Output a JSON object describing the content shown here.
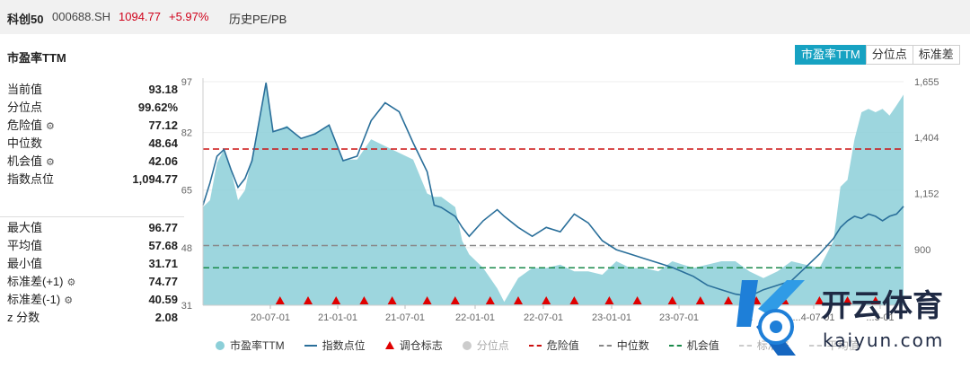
{
  "header": {
    "index_name": "科创50",
    "index_code": "000688.SH",
    "price": "1094.77",
    "change": "+5.97%",
    "history_label": "历史PE/PB"
  },
  "section_title": "市盈率TTM",
  "tabs": [
    {
      "label": "市盈率TTM",
      "active": true
    },
    {
      "label": "分位点",
      "active": false
    },
    {
      "label": "标准差",
      "active": false
    }
  ],
  "stats_top": [
    {
      "label": "当前值",
      "value": "93.18",
      "gear": false
    },
    {
      "label": "分位点",
      "value": "99.62%",
      "gear": false
    },
    {
      "label": "危险值",
      "value": "77.12",
      "gear": true
    },
    {
      "label": "中位数",
      "value": "48.64",
      "gear": false
    },
    {
      "label": "机会值",
      "value": "42.06",
      "gear": true
    },
    {
      "label": "指数点位",
      "value": "1,094.77",
      "gear": false
    }
  ],
  "stats_bottom": [
    {
      "label": "最大值",
      "value": "96.77",
      "gear": false
    },
    {
      "label": "平均值",
      "value": "57.68",
      "gear": false
    },
    {
      "label": "最小值",
      "value": "31.71",
      "gear": false
    },
    {
      "label": "标准差(+1)",
      "value": "74.77",
      "gear": true
    },
    {
      "label": "标准差(-1)",
      "value": "40.59",
      "gear": true
    },
    {
      "label": "z 分数",
      "value": "2.08",
      "gear": false
    }
  ],
  "watermark": {
    "brand": "开云体育",
    "domain": "kaiyun.com"
  },
  "colors": {
    "area": "#8ccfd8",
    "index_line": "#2a6f9a",
    "danger": "#cc1111",
    "median": "#888888",
    "opportunity": "#1a8a4a",
    "active_tab": "#17a2c2",
    "price": "#d0021b"
  },
  "chart_data": {
    "type": "area",
    "x_tick_labels": [
      "20-07-01",
      "21-01-01",
      "21-07-01",
      "22-01-01",
      "22-07-01",
      "23-01-01",
      "23-07-01",
      "24-01-01",
      "24-07-01",
      "25-01-01"
    ],
    "x_tick_visible": [
      "20-07-01",
      "21-01-01",
      "21-07-01",
      "22-01-01",
      "22-07-01",
      "23-01-01",
      "23-07-01",
      "...",
      "...4-07-01",
      "...5-01"
    ],
    "left_axis": {
      "ticks": [
        31,
        48,
        65,
        82,
        97
      ],
      "ylim": [
        31,
        97
      ]
    },
    "right_axis": {
      "ticks": [
        "900",
        "1,152",
        "1,404",
        "1,655"
      ],
      "tick_values": [
        900,
        1152,
        1404,
        1655
      ],
      "ylim": [
        650,
        1655
      ]
    },
    "reference_lines": {
      "danger": 77.12,
      "median": 48.64,
      "opportunity": 42.06
    },
    "x": [
      0,
      0.01,
      0.02,
      0.03,
      0.04,
      0.05,
      0.06,
      0.07,
      0.09,
      0.1,
      0.12,
      0.14,
      0.16,
      0.18,
      0.2,
      0.22,
      0.24,
      0.26,
      0.28,
      0.3,
      0.32,
      0.33,
      0.34,
      0.36,
      0.37,
      0.38,
      0.4,
      0.42,
      0.43,
      0.45,
      0.47,
      0.49,
      0.51,
      0.53,
      0.55,
      0.57,
      0.59,
      0.61,
      0.63,
      0.65,
      0.67,
      0.7,
      0.72,
      0.74,
      0.76,
      0.78,
      0.8,
      0.82,
      0.84,
      0.86,
      0.88,
      0.9,
      0.91,
      0.92,
      0.93,
      0.94,
      0.95,
      0.96,
      0.97,
      0.98,
      0.99,
      1.0
    ],
    "series": [
      {
        "name": "市盈率TTM",
        "axis": "left",
        "values": [
          60,
          62,
          73,
          77,
          71,
          62,
          65,
          75,
          97,
          82,
          84,
          80,
          82,
          84,
          74,
          74,
          80,
          78,
          76,
          74,
          64,
          63,
          63,
          60,
          50,
          46,
          42,
          36,
          32,
          39,
          42,
          42,
          43,
          41,
          41,
          40,
          44,
          42,
          42,
          41,
          44,
          42,
          43,
          44,
          44,
          41,
          39,
          41,
          44,
          43,
          42,
          50,
          66,
          68,
          80,
          88,
          89,
          88,
          89,
          87,
          90,
          93.18
        ]
      },
      {
        "name": "指数点位",
        "axis": "right",
        "values": [
          1100,
          1200,
          1320,
          1350,
          1260,
          1180,
          1220,
          1300,
          1650,
          1430,
          1450,
          1400,
          1420,
          1460,
          1300,
          1320,
          1480,
          1560,
          1520,
          1380,
          1250,
          1100,
          1090,
          1050,
          1000,
          960,
          1030,
          1080,
          1050,
          1000,
          960,
          1000,
          980,
          1060,
          1020,
          940,
          900,
          880,
          860,
          840,
          820,
          780,
          740,
          720,
          700,
          690,
          720,
          740,
          760,
          820,
          880,
          950,
          1000,
          1030,
          1050,
          1040,
          1060,
          1050,
          1030,
          1050,
          1060,
          1094.77
        ]
      }
    ],
    "adjustment_markers": [
      0.11,
      0.15,
      0.19,
      0.23,
      0.27,
      0.32,
      0.36,
      0.41,
      0.45,
      0.49,
      0.53,
      0.58,
      0.62,
      0.67,
      0.71,
      0.75,
      0.79,
      0.83,
      0.88,
      0.92,
      0.96
    ],
    "legend": [
      {
        "label": "市盈率TTM",
        "symbol": "dot",
        "color": "#8ccfd8",
        "muted": false
      },
      {
        "label": "指数点位",
        "symbol": "line",
        "color": "#2a6f9a",
        "muted": false
      },
      {
        "label": "调仓标志",
        "symbol": "triangle",
        "color": "#e00000",
        "muted": false
      },
      {
        "label": "分位点",
        "symbol": "dot",
        "color": "#cccccc",
        "muted": true
      },
      {
        "label": "危险值",
        "symbol": "dash",
        "color": "#cc1111",
        "muted": false
      },
      {
        "label": "中位数",
        "symbol": "dash",
        "color": "#888888",
        "muted": false
      },
      {
        "label": "机会值",
        "symbol": "dash",
        "color": "#1a8a4a",
        "muted": false
      },
      {
        "label": "标准差",
        "symbol": "dash",
        "color": "#cccccc",
        "muted": true
      },
      {
        "label": "平均值",
        "symbol": "dash",
        "color": "#cccccc",
        "muted": true
      }
    ]
  }
}
